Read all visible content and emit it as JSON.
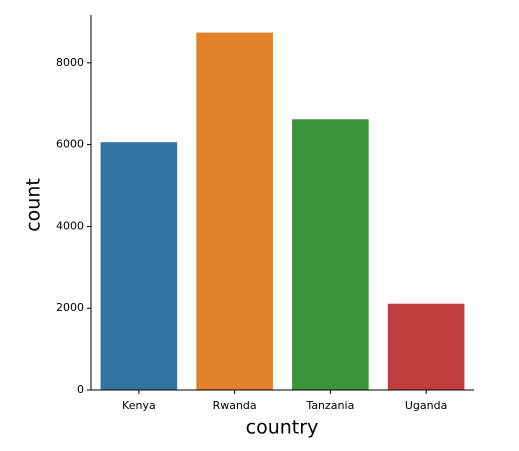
{
  "chart_data": {
    "type": "bar",
    "x_label": "country",
    "y_label": "count",
    "categories": [
      "Kenya",
      "Rwanda",
      "Tanzania",
      "Uganda"
    ],
    "values": [
      6060,
      8740,
      6620,
      2110
    ],
    "colors": [
      "#3274a1",
      "#e1812c",
      "#3a923a",
      "#c03d3e"
    ],
    "ylim": [
      0,
      9170
    ],
    "yticks": [
      0,
      2000,
      4000,
      6000,
      8000
    ]
  }
}
